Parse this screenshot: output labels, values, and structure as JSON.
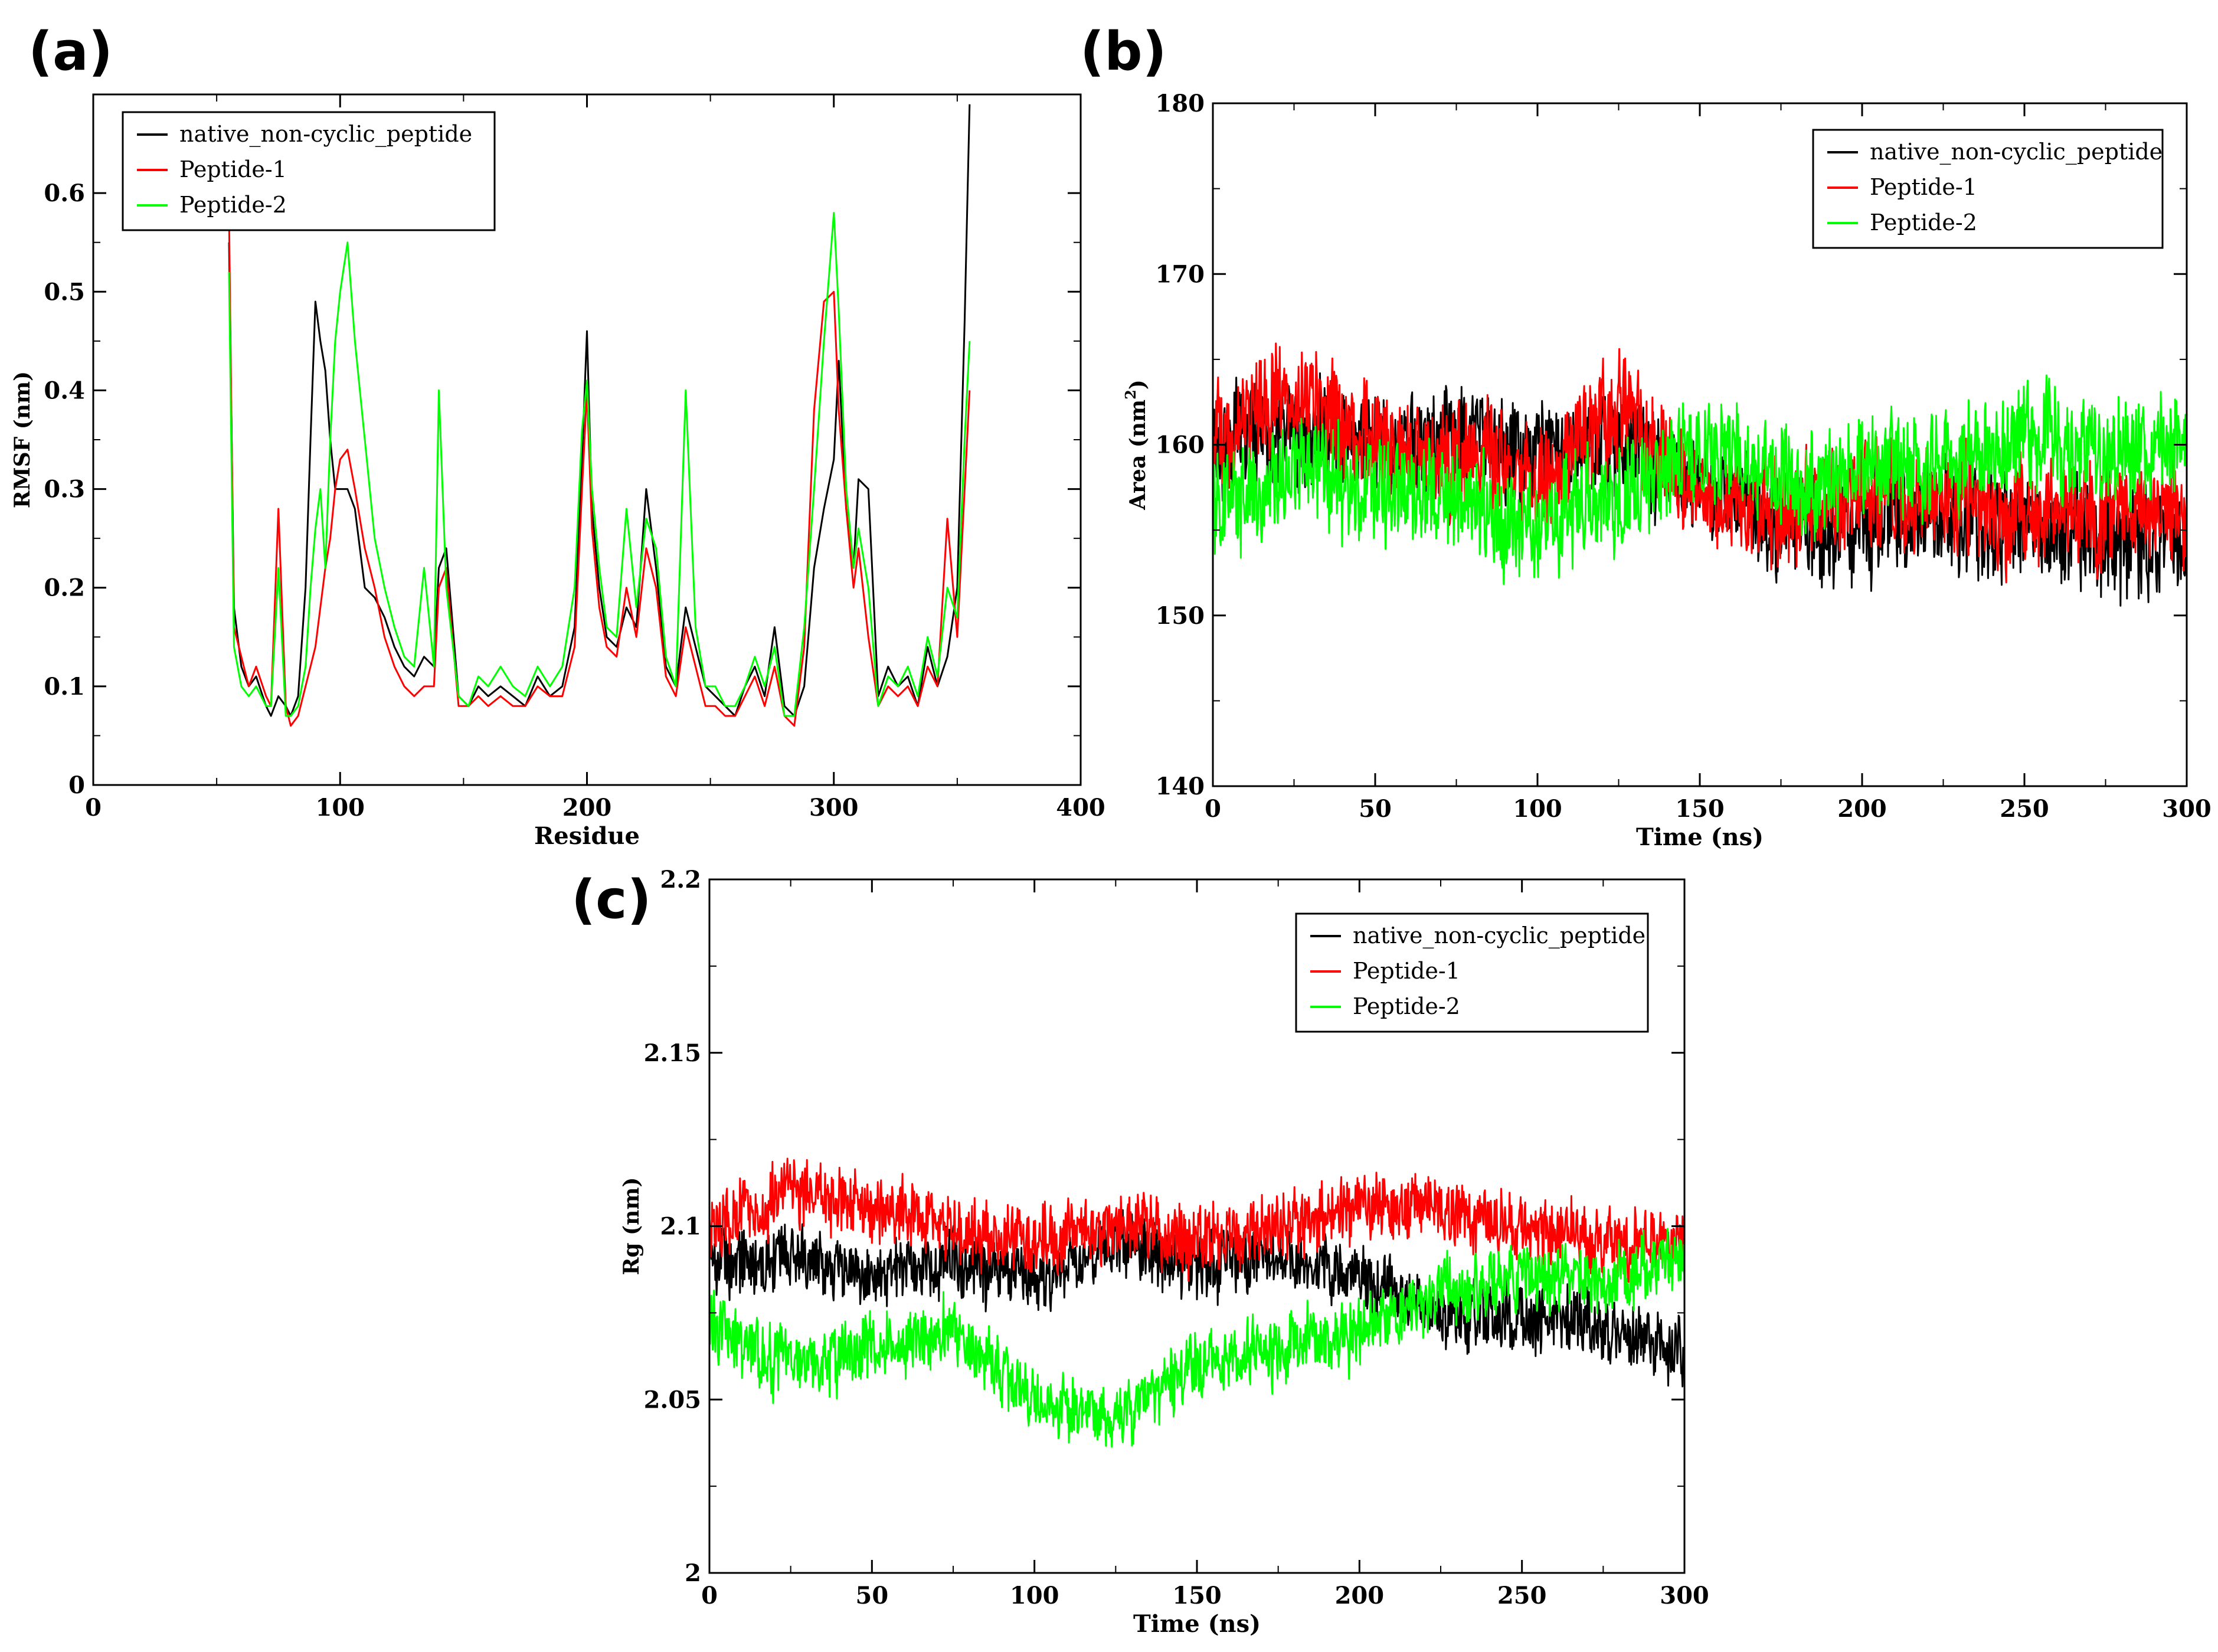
{
  "chart_data": [
    {
      "panel_id": "a",
      "panel_label": "(a)",
      "type": "line",
      "title": "",
      "xlabel": "Residue",
      "ylabel": "RMSF (nm)",
      "xlim": [
        0,
        400
      ],
      "ylim": [
        0,
        0.7
      ],
      "xticks": [
        0,
        100,
        200,
        300,
        400
      ],
      "yticks": [
        0,
        0.1,
        0.2,
        0.3,
        0.4,
        0.5,
        0.6
      ],
      "xtick_labels": [
        "0",
        "100",
        "200",
        "300",
        "400"
      ],
      "ytick_labels": [
        "0",
        "0.1",
        "0.2",
        "0.3",
        "0.4",
        "0.5",
        "0.6"
      ],
      "grid": false,
      "legend_position": "top-left",
      "series": [
        {
          "name": "native_non-cyclic_peptide",
          "color": "#000000",
          "x": [
            55,
            57,
            60,
            63,
            66,
            70,
            72,
            75,
            78,
            80,
            83,
            86,
            88,
            90,
            92,
            94,
            96,
            98,
            100,
            103,
            106,
            110,
            114,
            118,
            122,
            126,
            130,
            134,
            138,
            140,
            143,
            148,
            152,
            156,
            160,
            165,
            170,
            175,
            180,
            185,
            190,
            195,
            198,
            200,
            202,
            205,
            208,
            212,
            216,
            220,
            224,
            228,
            232,
            236,
            240,
            244,
            248,
            252,
            256,
            260,
            264,
            268,
            272,
            276,
            280,
            284,
            288,
            292,
            296,
            300,
            302,
            305,
            308,
            310,
            314,
            318,
            322,
            326,
            330,
            334,
            338,
            342,
            346,
            350,
            353,
            355
          ],
          "values": [
            0.55,
            0.18,
            0.12,
            0.1,
            0.11,
            0.08,
            0.07,
            0.09,
            0.08,
            0.07,
            0.09,
            0.2,
            0.35,
            0.49,
            0.45,
            0.42,
            0.35,
            0.3,
            0.3,
            0.3,
            0.28,
            0.2,
            0.19,
            0.17,
            0.14,
            0.12,
            0.11,
            0.13,
            0.12,
            0.22,
            0.24,
            0.09,
            0.08,
            0.1,
            0.09,
            0.1,
            0.09,
            0.08,
            0.11,
            0.09,
            0.1,
            0.16,
            0.33,
            0.46,
            0.28,
            0.2,
            0.15,
            0.14,
            0.18,
            0.16,
            0.3,
            0.22,
            0.12,
            0.1,
            0.18,
            0.14,
            0.1,
            0.09,
            0.08,
            0.07,
            0.1,
            0.12,
            0.09,
            0.16,
            0.08,
            0.07,
            0.1,
            0.22,
            0.28,
            0.33,
            0.43,
            0.28,
            0.22,
            0.31,
            0.3,
            0.09,
            0.12,
            0.1,
            0.11,
            0.08,
            0.14,
            0.1,
            0.13,
            0.2,
            0.47,
            0.69
          ]
        },
        {
          "name": "Peptide-1",
          "color": "#ff0000",
          "x": [
            55,
            57,
            60,
            63,
            66,
            70,
            72,
            75,
            78,
            80,
            83,
            86,
            88,
            90,
            92,
            94,
            96,
            98,
            100,
            103,
            106,
            110,
            114,
            118,
            122,
            126,
            130,
            134,
            138,
            140,
            143,
            148,
            152,
            156,
            160,
            165,
            170,
            175,
            180,
            185,
            190,
            195,
            198,
            200,
            202,
            205,
            208,
            212,
            216,
            220,
            224,
            228,
            232,
            236,
            240,
            244,
            248,
            252,
            256,
            260,
            264,
            268,
            272,
            276,
            280,
            284,
            288,
            292,
            296,
            300,
            302,
            305,
            308,
            310,
            314,
            318,
            322,
            326,
            330,
            334,
            338,
            342,
            346,
            350,
            353,
            355
          ],
          "values": [
            0.58,
            0.16,
            0.13,
            0.1,
            0.12,
            0.09,
            0.08,
            0.28,
            0.08,
            0.06,
            0.07,
            0.1,
            0.12,
            0.14,
            0.18,
            0.22,
            0.25,
            0.3,
            0.33,
            0.34,
            0.3,
            0.24,
            0.2,
            0.15,
            0.12,
            0.1,
            0.09,
            0.1,
            0.1,
            0.2,
            0.22,
            0.08,
            0.08,
            0.09,
            0.08,
            0.09,
            0.08,
            0.08,
            0.1,
            0.09,
            0.09,
            0.14,
            0.3,
            0.4,
            0.26,
            0.18,
            0.14,
            0.13,
            0.2,
            0.15,
            0.24,
            0.2,
            0.11,
            0.09,
            0.16,
            0.12,
            0.08,
            0.08,
            0.07,
            0.07,
            0.09,
            0.11,
            0.08,
            0.12,
            0.07,
            0.06,
            0.14,
            0.38,
            0.49,
            0.5,
            0.38,
            0.28,
            0.2,
            0.24,
            0.15,
            0.08,
            0.1,
            0.09,
            0.1,
            0.08,
            0.12,
            0.1,
            0.27,
            0.15,
            0.3,
            0.4
          ]
        },
        {
          "name": "Peptide-2",
          "color": "#00ff00",
          "x": [
            55,
            57,
            60,
            63,
            66,
            70,
            72,
            75,
            78,
            80,
            83,
            86,
            88,
            90,
            92,
            94,
            96,
            98,
            100,
            103,
            106,
            110,
            114,
            118,
            122,
            126,
            130,
            134,
            138,
            140,
            143,
            148,
            152,
            156,
            160,
            165,
            170,
            175,
            180,
            185,
            190,
            195,
            198,
            200,
            202,
            205,
            208,
            212,
            216,
            220,
            224,
            228,
            232,
            236,
            240,
            244,
            248,
            252,
            256,
            260,
            264,
            268,
            272,
            276,
            280,
            284,
            288,
            292,
            296,
            300,
            302,
            305,
            308,
            310,
            314,
            318,
            322,
            326,
            330,
            334,
            338,
            342,
            346,
            350,
            353,
            355
          ],
          "values": [
            0.52,
            0.14,
            0.1,
            0.09,
            0.1,
            0.08,
            0.08,
            0.22,
            0.07,
            0.07,
            0.08,
            0.12,
            0.2,
            0.26,
            0.3,
            0.22,
            0.35,
            0.45,
            0.5,
            0.55,
            0.45,
            0.35,
            0.25,
            0.2,
            0.16,
            0.13,
            0.12,
            0.22,
            0.12,
            0.4,
            0.2,
            0.09,
            0.08,
            0.11,
            0.1,
            0.12,
            0.1,
            0.09,
            0.12,
            0.1,
            0.12,
            0.2,
            0.36,
            0.41,
            0.3,
            0.22,
            0.16,
            0.15,
            0.28,
            0.18,
            0.27,
            0.24,
            0.13,
            0.1,
            0.4,
            0.16,
            0.1,
            0.1,
            0.08,
            0.08,
            0.1,
            0.13,
            0.1,
            0.14,
            0.07,
            0.07,
            0.16,
            0.3,
            0.45,
            0.58,
            0.48,
            0.3,
            0.22,
            0.26,
            0.2,
            0.08,
            0.11,
            0.1,
            0.12,
            0.09,
            0.15,
            0.11,
            0.2,
            0.17,
            0.35,
            0.45
          ]
        }
      ]
    },
    {
      "panel_id": "b",
      "panel_label": "(b)",
      "type": "line",
      "title": "",
      "xlabel": "Time (ns)",
      "ylabel": "Area (nm",
      "ylabel_superscript": "2",
      "ylabel_suffix": ")",
      "xlim": [
        0,
        300
      ],
      "ylim": [
        140,
        180
      ],
      "xticks": [
        0,
        50,
        100,
        150,
        200,
        250,
        300
      ],
      "yticks": [
        140,
        150,
        160,
        170,
        180
      ],
      "xtick_labels": [
        "0",
        "50",
        "100",
        "150",
        "200",
        "250",
        "300"
      ],
      "ytick_labels": [
        "140",
        "150",
        "160",
        "170",
        "180"
      ],
      "grid": false,
      "legend_position": "top-right",
      "noise_amplitude": 4.2,
      "series": [
        {
          "name": "native_non-cyclic_peptide",
          "color": "#000000",
          "x": [
            0,
            25,
            50,
            75,
            100,
            125,
            150,
            175,
            200,
            225,
            250,
            275,
            300
          ],
          "values": [
            160,
            161,
            160,
            160,
            159.5,
            160,
            158,
            155,
            155,
            156,
            155,
            154.5,
            154
          ]
        },
        {
          "name": "Peptide-1",
          "color": "#ff0000",
          "x": [
            0,
            25,
            50,
            75,
            100,
            125,
            150,
            175,
            200,
            225,
            250,
            275,
            300
          ],
          "values": [
            161,
            163,
            160,
            159,
            158,
            162,
            157,
            156,
            157,
            157,
            156,
            156,
            156
          ]
        },
        {
          "name": "Peptide-2",
          "color": "#00ff00",
          "x": [
            0,
            25,
            50,
            75,
            100,
            125,
            150,
            175,
            200,
            225,
            250,
            275,
            300
          ],
          "values": [
            157,
            158,
            157,
            157,
            155,
            157,
            160,
            158,
            158.5,
            159,
            160,
            160,
            159.5
          ]
        }
      ]
    },
    {
      "panel_id": "c",
      "panel_label": "(c)",
      "type": "line",
      "title": "",
      "xlabel": "Time (ns)",
      "ylabel": "Rg (nm)",
      "xlim": [
        0,
        300
      ],
      "ylim": [
        2.0,
        2.2
      ],
      "xticks": [
        0,
        50,
        100,
        150,
        200,
        250,
        300
      ],
      "yticks": [
        2.0,
        2.05,
        2.1,
        2.15,
        2.2
      ],
      "xtick_labels": [
        "0",
        "50",
        "100",
        "150",
        "200",
        "250",
        "300"
      ],
      "ytick_labels": [
        "2",
        "2.05",
        "2.1",
        "2.15",
        "2.2"
      ],
      "grid": false,
      "legend_position": "top-right",
      "noise_amplitude": 0.013,
      "series": [
        {
          "name": "native_non-cyclic_peptide",
          "color": "#000000",
          "x": [
            0,
            25,
            50,
            75,
            100,
            125,
            150,
            175,
            200,
            225,
            250,
            275,
            300
          ],
          "values": [
            2.09,
            2.09,
            2.085,
            2.09,
            2.085,
            2.095,
            2.09,
            2.09,
            2.085,
            2.075,
            2.075,
            2.07,
            2.065
          ]
        },
        {
          "name": "Peptide-1",
          "color": "#ff0000",
          "x": [
            0,
            25,
            50,
            75,
            100,
            125,
            150,
            175,
            200,
            225,
            250,
            275,
            300
          ],
          "values": [
            2.1,
            2.11,
            2.105,
            2.1,
            2.095,
            2.1,
            2.095,
            2.1,
            2.105,
            2.105,
            2.1,
            2.095,
            2.095
          ]
        },
        {
          "name": "Peptide-2",
          "color": "#00ff00",
          "x": [
            0,
            25,
            50,
            75,
            100,
            125,
            150,
            175,
            200,
            225,
            250,
            275,
            300
          ],
          "values": [
            2.07,
            2.06,
            2.065,
            2.07,
            2.05,
            2.045,
            2.06,
            2.065,
            2.07,
            2.08,
            2.085,
            2.085,
            2.09
          ]
        }
      ]
    }
  ]
}
